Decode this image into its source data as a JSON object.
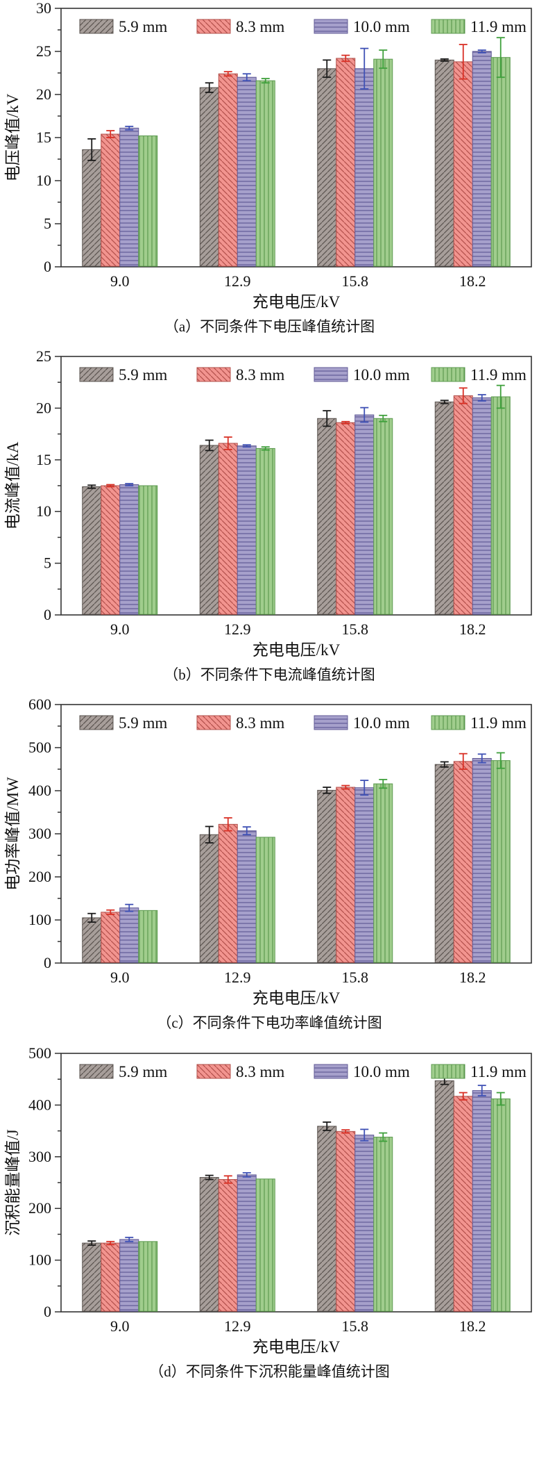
{
  "figure": {
    "x_unit_note": "charging voltage in kV",
    "legend_items": [
      "5.9 mm",
      "8.3 mm",
      "10.0 mm",
      "11.9 mm"
    ]
  },
  "colors": {
    "gray_fill": "#a79e9a",
    "gray_hatch": "#5a534f",
    "red_fill": "#f2948f",
    "red_hatch": "#b2504b",
    "blue_fill": "#a6a0cb",
    "blue_hatch": "#605a96",
    "green_fill": "#a0cd8d",
    "green_hatch": "#5c9a4f",
    "axis": "#333333",
    "err_black": "#1a1a1a",
    "err_red": "#d93025",
    "err_blue": "#3f51b5",
    "err_green": "#3fa03c"
  },
  "chart_data": [
    {
      "id": "a",
      "type": "bar",
      "caption": "（a）不同条件下电压峰值统计图",
      "xlabel": "充电电压/kV",
      "ylabel": "电压峰值/kV",
      "ylim": [
        0,
        30
      ],
      "ytick_step": 5,
      "grid": false,
      "legend_position": "top-inside",
      "categories": [
        "9.0",
        "12.9",
        "15.8",
        "18.2"
      ],
      "series": [
        {
          "name": "5.9 mm",
          "hatch": "diag-up",
          "fill": "#a79e9a",
          "hatch_color": "#5a534f",
          "err_color": "#1a1a1a",
          "values": [
            13.6,
            20.8,
            23.0,
            24.0
          ],
          "errors": [
            1.25,
            0.55,
            1.0,
            0.12
          ]
        },
        {
          "name": "8.3 mm",
          "hatch": "diag-down",
          "fill": "#f2948f",
          "hatch_color": "#b2504b",
          "err_color": "#d93025",
          "values": [
            15.4,
            22.4,
            24.2,
            23.8
          ],
          "errors": [
            0.4,
            0.25,
            0.35,
            2.0
          ]
        },
        {
          "name": "10.0 mm",
          "hatch": "horizontal",
          "fill": "#a6a0cb",
          "hatch_color": "#605a96",
          "err_color": "#3f51b5",
          "values": [
            16.1,
            22.0,
            23.0,
            25.0
          ],
          "errors": [
            0.2,
            0.4,
            2.35,
            0.15
          ]
        },
        {
          "name": "11.9 mm",
          "hatch": "vertical",
          "fill": "#a0cd8d",
          "hatch_color": "#5c9a4f",
          "err_color": "#3fa03c",
          "values": [
            15.2,
            21.6,
            24.1,
            24.3
          ],
          "errors": [
            0,
            0.25,
            1.05,
            2.3
          ]
        }
      ]
    },
    {
      "id": "b",
      "type": "bar",
      "caption": "（b）不同条件下电流峰值统计图",
      "xlabel": "充电电压/kV",
      "ylabel": "电流峰值/kA",
      "ylim": [
        0,
        25
      ],
      "ytick_step": 5,
      "grid": false,
      "legend_position": "top-inside",
      "categories": [
        "9.0",
        "12.9",
        "15.8",
        "18.2"
      ],
      "series": [
        {
          "name": "5.9 mm",
          "hatch": "diag-up",
          "fill": "#a79e9a",
          "hatch_color": "#5a534f",
          "err_color": "#1a1a1a",
          "values": [
            12.4,
            16.4,
            19.0,
            20.6
          ],
          "errors": [
            0.15,
            0.5,
            0.75,
            0.15
          ]
        },
        {
          "name": "8.3 mm",
          "hatch": "diag-down",
          "fill": "#f2948f",
          "hatch_color": "#b2504b",
          "err_color": "#d93025",
          "values": [
            12.5,
            16.6,
            18.6,
            21.2
          ],
          "errors": [
            0.1,
            0.6,
            0.1,
            0.75
          ]
        },
        {
          "name": "10.0 mm",
          "hatch": "horizontal",
          "fill": "#a6a0cb",
          "hatch_color": "#605a96",
          "err_color": "#3f51b5",
          "values": [
            12.6,
            16.35,
            19.35,
            21.0
          ],
          "errors": [
            0.1,
            0.1,
            0.7,
            0.3
          ]
        },
        {
          "name": "11.9 mm",
          "hatch": "vertical",
          "fill": "#a0cd8d",
          "hatch_color": "#5c9a4f",
          "err_color": "#3fa03c",
          "values": [
            12.5,
            16.1,
            19.0,
            21.1
          ],
          "errors": [
            0,
            0.15,
            0.3,
            1.1
          ]
        }
      ]
    },
    {
      "id": "c",
      "type": "bar",
      "caption": "（c）不同条件下电功率峰值统计图",
      "xlabel": "充电电压/kV",
      "ylabel": "电功率峰值/MW",
      "ylim": [
        0,
        600
      ],
      "ytick_step": 100,
      "grid": false,
      "legend_position": "top-inside",
      "categories": [
        "9.0",
        "12.9",
        "15.8",
        "18.2"
      ],
      "series": [
        {
          "name": "5.9 mm",
          "hatch": "diag-up",
          "fill": "#a79e9a",
          "hatch_color": "#5a534f",
          "err_color": "#1a1a1a",
          "values": [
            105,
            298,
            401,
            461
          ],
          "errors": [
            10,
            19,
            7,
            6
          ]
        },
        {
          "name": "8.3 mm",
          "hatch": "diag-down",
          "fill": "#f2948f",
          "hatch_color": "#b2504b",
          "err_color": "#d93025",
          "values": [
            118,
            322,
            408,
            468
          ],
          "errors": [
            5,
            15,
            4,
            18
          ]
        },
        {
          "name": "10.0 mm",
          "hatch": "horizontal",
          "fill": "#a6a0cb",
          "hatch_color": "#605a96",
          "err_color": "#3f51b5",
          "values": [
            128,
            307,
            407,
            475
          ],
          "errors": [
            8,
            9,
            17,
            10
          ]
        },
        {
          "name": "11.9 mm",
          "hatch": "vertical",
          "fill": "#a0cd8d",
          "hatch_color": "#5c9a4f",
          "err_color": "#3fa03c",
          "values": [
            122,
            292,
            416,
            470
          ],
          "errors": [
            0,
            0,
            10,
            18
          ]
        }
      ]
    },
    {
      "id": "d",
      "type": "bar",
      "caption": "（d）不同条件下沉积能量峰值统计图",
      "xlabel": "充电电压/kV",
      "ylabel": "沉积能量峰值/J",
      "ylim": [
        0,
        500
      ],
      "ytick_step": 100,
      "grid": false,
      "legend_position": "top-inside",
      "categories": [
        "9.0",
        "12.9",
        "15.8",
        "18.2"
      ],
      "series": [
        {
          "name": "5.9 mm",
          "hatch": "diag-up",
          "fill": "#a79e9a",
          "hatch_color": "#5a534f",
          "err_color": "#1a1a1a",
          "values": [
            133,
            260,
            359,
            447
          ],
          "errors": [
            4,
            4,
            8,
            7
          ]
        },
        {
          "name": "8.3 mm",
          "hatch": "diag-down",
          "fill": "#f2948f",
          "hatch_color": "#b2504b",
          "err_color": "#d93025",
          "values": [
            133,
            256,
            349,
            417
          ],
          "errors": [
            3,
            7,
            3,
            7
          ]
        },
        {
          "name": "10.0 mm",
          "hatch": "horizontal",
          "fill": "#a6a0cb",
          "hatch_color": "#605a96",
          "err_color": "#3f51b5",
          "values": [
            140,
            265,
            342,
            428
          ],
          "errors": [
            4,
            4,
            11,
            10
          ]
        },
        {
          "name": "11.9 mm",
          "hatch": "vertical",
          "fill": "#a0cd8d",
          "hatch_color": "#5c9a4f",
          "err_color": "#3fa03c",
          "values": [
            136,
            257,
            338,
            412
          ],
          "errors": [
            0,
            0,
            8,
            12
          ]
        }
      ]
    }
  ]
}
